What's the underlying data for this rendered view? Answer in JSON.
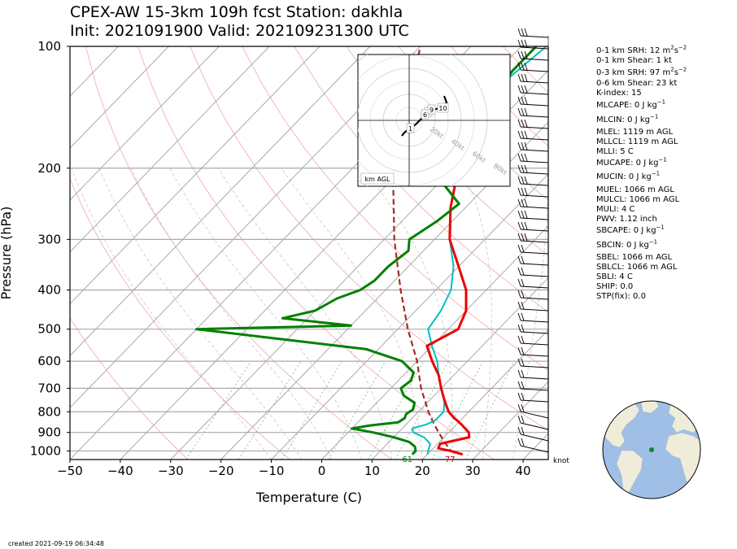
{
  "title": {
    "line1": "CPEX-AW 15-3km  109h fcst  Station: dakhla",
    "line2": "Init: 2021091900  Valid: 202109231300 UTC"
  },
  "created": "created 2021-09-19 06:34:48",
  "indices": [
    {
      "text": "0-1 km SRH: 12 m",
      "sup": "2",
      "tail": "s",
      "sup2": "−2"
    },
    {
      "text": "0-1 km Shear: 1 kt"
    },
    {
      "text": "0-3 km SRH: 97 m",
      "sup": "2",
      "tail": "s",
      "sup2": "−2"
    },
    {
      "text": "0-6 km Shear: 23 kt"
    },
    {
      "text": "K-index: 15"
    },
    {
      "text": "MLCAPE: 0 J kg",
      "sup": "−1"
    },
    {
      "text": "MLCIN: 0 J kg",
      "sup": "−1"
    },
    {
      "text": "MLEL: 1119 m AGL"
    },
    {
      "text": "MLLCL: 1119 m AGL"
    },
    {
      "text": "MLLI: 5 C"
    },
    {
      "text": "MUCAPE: 0 J kg",
      "sup": "−1"
    },
    {
      "text": "MUCIN: 0 J kg",
      "sup": "−1"
    },
    {
      "text": "MUEL: 1066 m AGL"
    },
    {
      "text": "MULCL: 1066 m AGL"
    },
    {
      "text": "MULI: 4 C"
    },
    {
      "text": "PWV: 1.12 inch"
    },
    {
      "text": "SBCAPE: 0 J kg",
      "sup": "−1"
    },
    {
      "text": "SBCIN: 0 J kg",
      "sup": "−1"
    },
    {
      "text": "SBEL: 1066 m AGL"
    },
    {
      "text": "SBLCL: 1066 m AGL"
    },
    {
      "text": "SBLI: 4 C"
    },
    {
      "text": "SHIP: 0.0"
    },
    {
      "text": "STP(fix): 0.0"
    }
  ],
  "colors": {
    "temperature": "#ee0000",
    "dewpoint": "#008000",
    "wetbulb": "#00c0c0",
    "parcel": "#a52a2a",
    "isobar": "#a9a9a9",
    "isotherm": "#a9a9a9",
    "dry_adiabat": "#f4b8b8",
    "moist_adiabat": "#c8c8c8",
    "mixing_ratio": "#90c890",
    "land": "#efedd9",
    "ocean": "#a0bfe6"
  },
  "chart_data": {
    "type": "line",
    "title": "",
    "xlabel": "Temperature (C)",
    "ylabel": "Pressure (hPa)",
    "xlim": [
      -50,
      45
    ],
    "ylim": [
      1050,
      100
    ],
    "y_scale": "log",
    "x_ticks": [
      -50,
      -40,
      -30,
      -20,
      -10,
      0,
      10,
      20,
      30,
      40
    ],
    "y_ticks": [
      1000,
      900,
      800,
      700,
      600,
      500,
      400,
      300,
      200,
      100
    ],
    "series": [
      {
        "key": "temperature",
        "pressure": [
          1020,
          1000,
          985,
          960,
          940,
          925,
          900,
          860,
          825,
          800,
          750,
          700,
          650,
          600,
          550,
          500,
          450,
          400,
          350,
          300,
          250,
          200
        ],
        "values": [
          27,
          24,
          21,
          20.5,
          23,
          25,
          24,
          21,
          18,
          16,
          13,
          10,
          7,
          3,
          -1,
          2,
          0,
          -4,
          -10,
          -17,
          -23,
          -29
        ]
      },
      {
        "key": "wetbulb",
        "pressure": [
          1020,
          1000,
          960,
          925,
          900,
          880,
          860,
          840,
          800,
          750,
          700,
          650,
          600,
          550,
          500,
          450,
          400,
          350,
          300,
          250,
          200,
          150,
          130,
          100
        ],
        "values": [
          20,
          19.5,
          18.5,
          16,
          13,
          12,
          14,
          15,
          15,
          13,
          10,
          7,
          4,
          0,
          -4,
          -5,
          -7,
          -11,
          -17,
          -23,
          -29,
          -36,
          -37,
          -35
        ]
      },
      {
        "key": "dewpoint",
        "pressure": [
          1020,
          1000,
          975,
          950,
          925,
          900,
          880,
          865,
          850,
          830,
          810,
          790,
          760,
          730,
          700,
          670,
          640,
          600,
          560,
          500,
          490,
          470,
          450,
          420,
          400,
          380,
          350,
          320,
          300,
          270,
          245,
          215,
          190,
          170,
          150,
          130,
          115,
          100
        ],
        "values": [
          17,
          17,
          16,
          14,
          10,
          5,
          0,
          3,
          8,
          8.5,
          8,
          8.5,
          7.5,
          4,
          2,
          2.5,
          1.5,
          -3,
          -12.5,
          -50,
          -20,
          -35,
          -30,
          -28,
          -25,
          -24,
          -24,
          -23,
          -25,
          -23,
          -22,
          -30,
          -35,
          -34,
          -35,
          -36,
          -37,
          -37
        ]
      },
      {
        "key": "parcel",
        "pressure": [
          1020,
          1000,
          950,
          900,
          850,
          800,
          700,
          600,
          500,
          400,
          300,
          200,
          100
        ],
        "values": [
          27,
          24,
          21,
          18,
          15,
          12,
          6,
          0,
          -8,
          -17,
          -28,
          -42,
          -60
        ]
      }
    ],
    "surface_labels": [
      {
        "pressure": 1020,
        "temperature": 17,
        "label": "61"
      },
      {
        "pressure": 1020,
        "temperature": 25.5,
        "label": "77"
      }
    ],
    "wind_unit_label": "knot",
    "hodograph": {
      "range_labels": [
        "20kt",
        "40kt",
        "60kt",
        "80kt"
      ],
      "height_labels": [
        "1",
        "3",
        "6",
        "9",
        "10"
      ],
      "legend": "km AGL"
    }
  }
}
